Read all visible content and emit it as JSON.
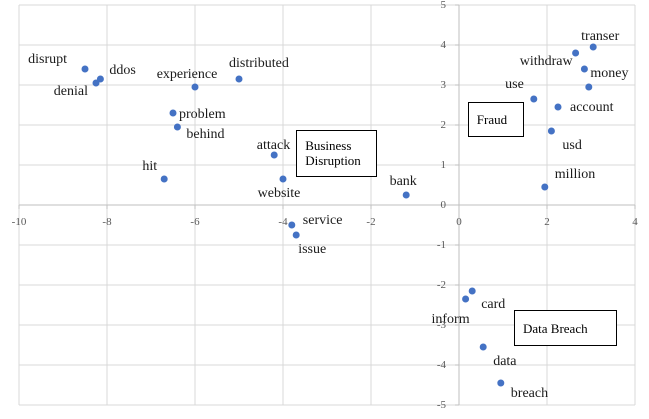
{
  "chart_data": {
    "type": "scatter",
    "title": "",
    "xlabel": "",
    "ylabel": "",
    "xlim": [
      -10,
      4
    ],
    "ylim": [
      -5,
      5
    ],
    "x_ticks": [
      -10,
      -8,
      -6,
      -4,
      -2,
      0,
      2,
      4
    ],
    "y_ticks": [
      5,
      4,
      3,
      2,
      1,
      0,
      -1,
      -2,
      -3,
      -4,
      -5
    ],
    "grid": true,
    "legend": "none",
    "point_radius": 3.5,
    "colors": {
      "point": "#4472c4",
      "gridline": "#d9d9d9",
      "axis": "#bfbfbf",
      "tick_label": "#595959",
      "word_label": "#1a1a1a",
      "annotation_border": "#000000",
      "background": "#ffffff"
    },
    "clusters": [
      {
        "name": "Business Disruption",
        "points": [
          {
            "word": "disrupt",
            "x": -8.5,
            "y": 3.4,
            "anchor": "end",
            "dx": -18,
            "dy": -9
          },
          {
            "word": "ddos",
            "x": -8.15,
            "y": 3.15,
            "anchor": "start",
            "dx": 9,
            "dy": -8
          },
          {
            "word": "denial",
            "x": -8.25,
            "y": 3.05,
            "anchor": "end",
            "dx": -8,
            "dy": 9
          },
          {
            "word": "experience",
            "x": -6.0,
            "y": 2.95,
            "anchor": "middle",
            "dx": -8,
            "dy": -12
          },
          {
            "word": "distributed",
            "x": -5.0,
            "y": 3.15,
            "anchor": "start",
            "dx": -10,
            "dy": -15
          },
          {
            "word": "problem",
            "x": -6.5,
            "y": 2.3,
            "anchor": "start",
            "dx": 6,
            "dy": 2
          },
          {
            "word": "behind",
            "x": -6.4,
            "y": 1.95,
            "anchor": "start",
            "dx": 9,
            "dy": 8
          },
          {
            "word": "attack",
            "x": -4.2,
            "y": 1.25,
            "anchor": "end",
            "dx": 16,
            "dy": -9
          },
          {
            "word": "hit",
            "x": -6.7,
            "y": 0.65,
            "anchor": "end",
            "dx": -7,
            "dy": -12
          },
          {
            "word": "website",
            "x": -4.0,
            "y": 0.65,
            "anchor": "middle",
            "dx": -4,
            "dy": 15
          },
          {
            "word": "service",
            "x": -3.8,
            "y": -0.5,
            "anchor": "start",
            "dx": 11,
            "dy": -4
          },
          {
            "word": "issue",
            "x": -3.7,
            "y": -0.75,
            "anchor": "start",
            "dx": 2,
            "dy": 15
          }
        ]
      },
      {
        "name": "Fraud",
        "points": [
          {
            "word": "bank",
            "x": -1.2,
            "y": 0.25,
            "anchor": "middle",
            "dx": -3,
            "dy": -13
          },
          {
            "word": "use",
            "x": 1.7,
            "y": 2.65,
            "anchor": "end",
            "dx": -10,
            "dy": -14
          },
          {
            "word": "withdraw",
            "x": 2.65,
            "y": 3.8,
            "anchor": "end",
            "dx": -3,
            "dy": 9
          },
          {
            "word": "transer",
            "x": 3.05,
            "y": 3.95,
            "anchor": "middle",
            "dx": 7,
            "dy": -10
          },
          {
            "word": "money",
            "x": 2.85,
            "y": 3.4,
            "anchor": "start",
            "dx": 6,
            "dy": 5
          },
          {
            "word": "",
            "x": 2.95,
            "y": 2.95,
            "anchor": "none",
            "dx": 0,
            "dy": 0
          },
          {
            "word": "account",
            "x": 2.25,
            "y": 2.45,
            "anchor": "start",
            "dx": 12,
            "dy": 1
          },
          {
            "word": "usd",
            "x": 2.1,
            "y": 1.85,
            "anchor": "start",
            "dx": 11,
            "dy": 15
          },
          {
            "word": "million",
            "x": 1.95,
            "y": 0.45,
            "anchor": "start",
            "dx": 10,
            "dy": -12
          }
        ]
      },
      {
        "name": "Data Breach",
        "points": [
          {
            "word": "card",
            "x": 0.3,
            "y": -2.15,
            "anchor": "start",
            "dx": 9,
            "dy": 14
          },
          {
            "word": "inform",
            "x": 0.15,
            "y": -2.35,
            "anchor": "end",
            "dx": 4,
            "dy": 21
          },
          {
            "word": "data",
            "x": 0.55,
            "y": -3.55,
            "anchor": "start",
            "dx": 10,
            "dy": 15
          },
          {
            "word": "breach",
            "x": 0.95,
            "y": -4.45,
            "anchor": "start",
            "dx": 10,
            "dy": 11
          }
        ]
      }
    ],
    "annotations": [
      {
        "label": "Business Disruption",
        "lines": [
          "Business",
          "Disruption"
        ],
        "x1": -3.7,
        "y1": 1.88,
        "x2": -1.86,
        "y2": 0.7
      },
      {
        "label": "Fraud",
        "lines": [
          "Fraud"
        ],
        "x1": 0.2,
        "y1": 2.575,
        "x2": 1.48,
        "y2": 1.7
      },
      {
        "label": "Data Breach",
        "lines": [
          "Data Breach"
        ],
        "x1": 1.25,
        "y1": -2.625,
        "x2": 3.59,
        "y2": -3.525
      }
    ]
  }
}
